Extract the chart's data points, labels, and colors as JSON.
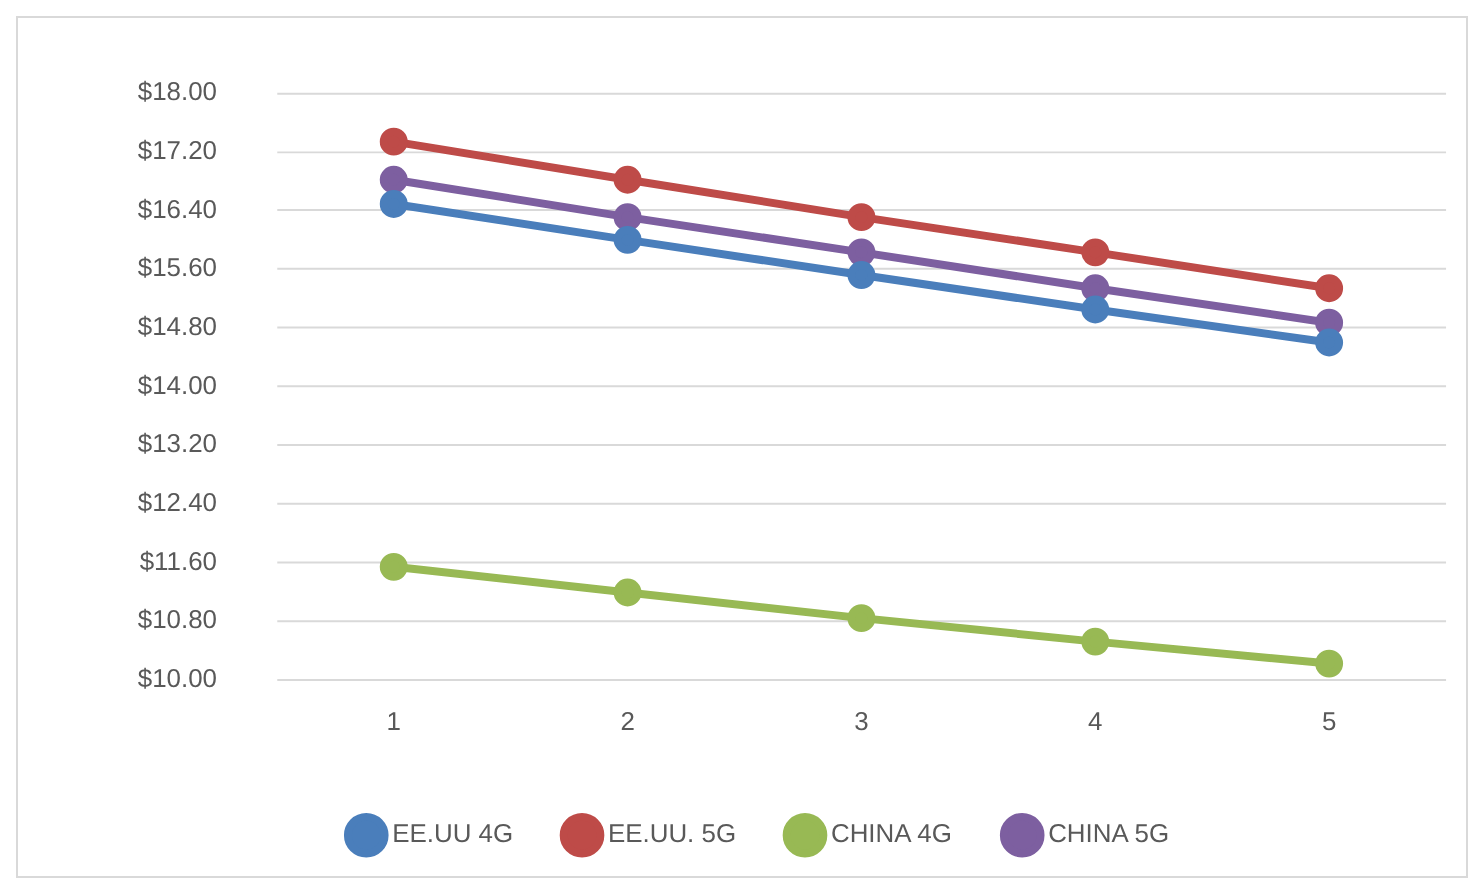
{
  "chart_data": {
    "type": "line",
    "categories": [
      "1",
      "2",
      "3",
      "4",
      "5"
    ],
    "series": [
      {
        "name": "EE.UU 4G",
        "color": "#4a7ebb",
        "values": [
          16.49,
          16.0,
          15.52,
          15.05,
          14.6
        ]
      },
      {
        "name": "EE.UU. 5G",
        "color": "#be4b48",
        "values": [
          17.34,
          16.82,
          16.31,
          15.83,
          15.34
        ]
      },
      {
        "name": "CHINA 4G",
        "color": "#98b954",
        "values": [
          11.54,
          11.19,
          10.84,
          10.52,
          10.22
        ]
      },
      {
        "name": "CHINA 5G",
        "color": "#7d5fa0",
        "values": [
          16.82,
          16.31,
          15.83,
          15.34,
          14.87
        ]
      }
    ],
    "ylim": [
      10,
      18
    ],
    "yticks": [
      {
        "value": 10,
        "label": "$10.00"
      },
      {
        "value": 10.8,
        "label": "$10.80"
      },
      {
        "value": 11.6,
        "label": "$11.60"
      },
      {
        "value": 12.4,
        "label": "$12.40"
      },
      {
        "value": 13.2,
        "label": "$13.20"
      },
      {
        "value": 14,
        "label": "$14.00"
      },
      {
        "value": 14.8,
        "label": "$14.80"
      },
      {
        "value": 15.6,
        "label": "$15.60"
      },
      {
        "value": 16.4,
        "label": "$16.40"
      },
      {
        "value": 17.2,
        "label": "$17.20"
      },
      {
        "value": 18,
        "label": "$18.00"
      }
    ],
    "grid": "y",
    "legend": "bottom",
    "marker": "circle",
    "line_style": "solid"
  }
}
